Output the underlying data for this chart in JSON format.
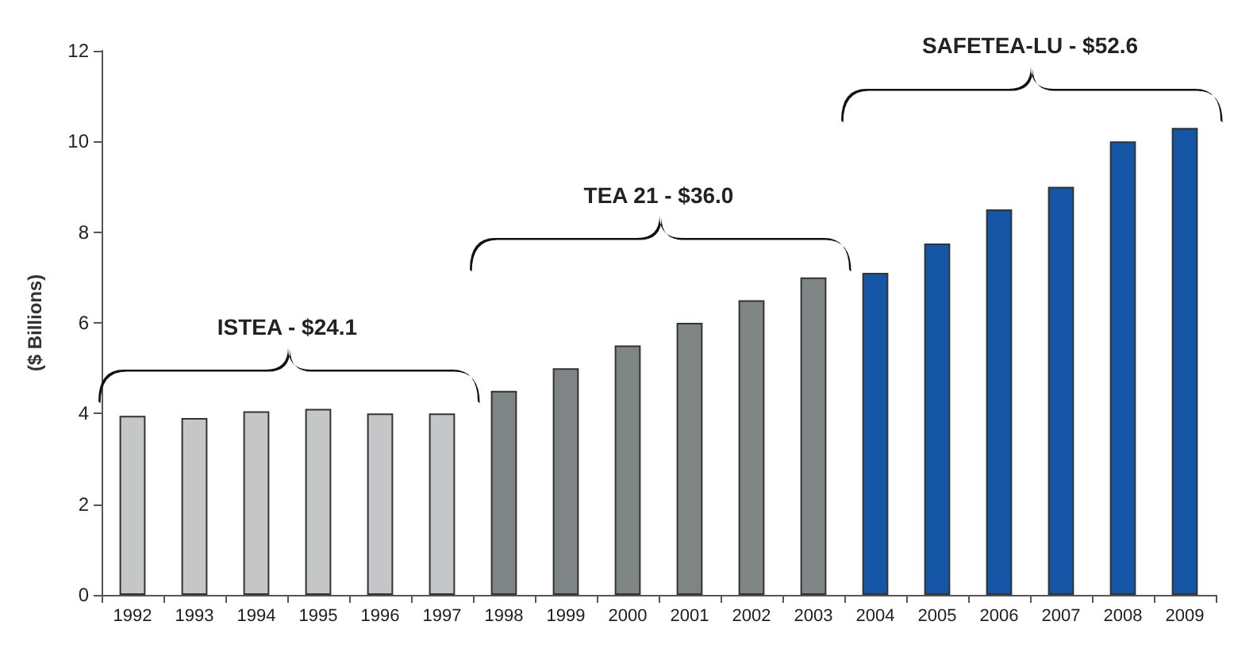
{
  "chart_data": {
    "type": "bar",
    "ylabel": "($ Billions)",
    "categories": [
      "1992",
      "1993",
      "1994",
      "1995",
      "1996",
      "1997",
      "1998",
      "1999",
      "2000",
      "2001",
      "2002",
      "2003",
      "2004",
      "2005",
      "2006",
      "2007",
      "2008",
      "2009"
    ],
    "values": [
      3.95,
      3.9,
      4.05,
      4.1,
      4.0,
      4.0,
      4.5,
      5.0,
      5.5,
      6.0,
      6.5,
      7.0,
      7.1,
      7.75,
      8.5,
      9.0,
      10.0,
      10.3
    ],
    "colors": [
      "#c5c6c8",
      "#c5c6c8",
      "#c5c6c8",
      "#c5c6c8",
      "#c5c6c8",
      "#c5c6c8",
      "#7f8584",
      "#7f8584",
      "#7f8584",
      "#7f8584",
      "#7f8584",
      "#7f8584",
      "#1555a5",
      "#1555a5",
      "#1555a5",
      "#1555a5",
      "#1555a5",
      "#1555a5"
    ],
    "ylim": [
      0,
      12
    ],
    "yticks": [
      0,
      2,
      4,
      6,
      8,
      10,
      12
    ],
    "grid": false,
    "annotations": [
      "ISTEA - $24.1",
      "TEA 21 - $36.0",
      "SAFETEA-LU - $52.6"
    ]
  }
}
